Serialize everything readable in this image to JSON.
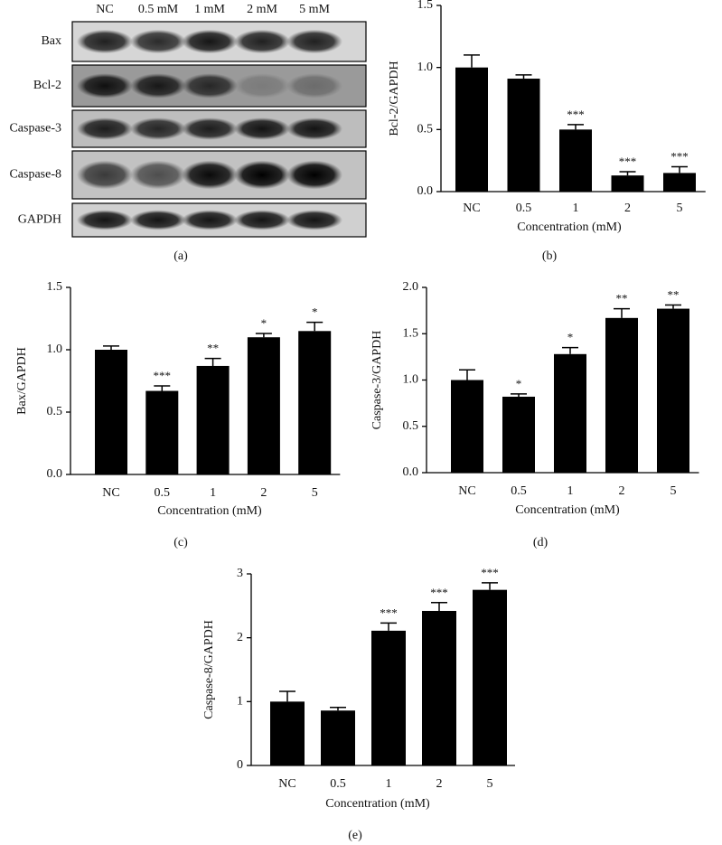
{
  "blot": {
    "lanes": [
      "NC",
      "0.5 mM",
      "1 mM",
      "2 mM",
      "5 mM"
    ],
    "proteins": [
      "Bax",
      "Bcl-2",
      "Caspase-3",
      "Caspase-8",
      "GAPDH"
    ],
    "panel_label": "(a)"
  },
  "chart_data": [
    {
      "type": "bar",
      "panel_label": "(b)",
      "ylabel": "Bcl-2/GAPDH",
      "xlabel": "Concentration (mM)",
      "categories": [
        "NC",
        "0.5",
        "1",
        "2",
        "5"
      ],
      "values": [
        1.0,
        0.91,
        0.5,
        0.13,
        0.15
      ],
      "errors": [
        0.1,
        0.03,
        0.04,
        0.03,
        0.05
      ],
      "annotations": [
        null,
        null,
        "***",
        "***",
        "***"
      ],
      "color": "#000000",
      "ylim": [
        0,
        1.5
      ],
      "yticks": [
        {
          "value": 0,
          "label": "0.0"
        },
        0.5,
        {
          "value": 1,
          "label": "1.0"
        },
        1.5
      ]
    },
    {
      "type": "bar",
      "panel_label": "(c)",
      "ylabel": "Bax/GAPDH",
      "xlabel": "Concentration (mM)",
      "categories": [
        "NC",
        "0.5",
        "1",
        "2",
        "5"
      ],
      "values": [
        1.0,
        0.67,
        0.87,
        1.1,
        1.15
      ],
      "errors": [
        0.03,
        0.04,
        0.06,
        0.03,
        0.07
      ],
      "annotations": [
        null,
        "***",
        "**",
        "*",
        "*"
      ],
      "color": "#000000",
      "ylim": [
        0,
        1.5
      ],
      "yticks": [
        {
          "value": 0,
          "label": "0.0"
        },
        0.5,
        {
          "value": 1,
          "label": "1.0"
        },
        1.5
      ]
    },
    {
      "type": "bar",
      "panel_label": "(d)",
      "ylabel": "Caspase-3/GAPDH",
      "xlabel": "Concentration (mM)",
      "categories": [
        "NC",
        "0.5",
        "1",
        "2",
        "5"
      ],
      "values": [
        1.0,
        0.82,
        1.28,
        1.67,
        1.77
      ],
      "errors": [
        0.11,
        0.03,
        0.07,
        0.1,
        0.04
      ],
      "annotations": [
        null,
        "*",
        "*",
        "**",
        "**"
      ],
      "color": "#000000",
      "ylim": [
        0,
        2
      ],
      "yticks": [
        {
          "value": 0,
          "label": "0.0"
        },
        0.5,
        {
          "value": 1,
          "label": "1.0"
        },
        1.5,
        {
          "value": 2,
          "label": "2.0"
        }
      ]
    },
    {
      "type": "bar",
      "panel_label": "(e)",
      "ylabel": "Caspase-8/GAPDH",
      "xlabel": "Concentration (mM)",
      "categories": [
        "NC",
        "0.5",
        "1",
        "2",
        "5"
      ],
      "values": [
        1.0,
        0.86,
        2.11,
        2.42,
        2.75
      ],
      "errors": [
        0.16,
        0.05,
        0.12,
        0.13,
        0.11
      ],
      "annotations": [
        null,
        null,
        "***",
        "***",
        "***"
      ],
      "color": "#000000",
      "ylim": [
        0,
        3
      ],
      "yticks": [
        0,
        1,
        2,
        3
      ]
    }
  ]
}
